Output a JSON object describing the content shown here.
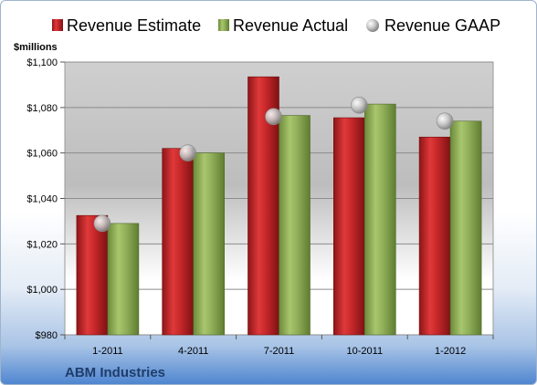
{
  "chart_data": {
    "type": "bar",
    "categories": [
      "1-2011",
      "4-2011",
      "7-2011",
      "10-2011",
      "1-2012"
    ],
    "series": [
      {
        "name": "Revenue Estimate",
        "values": [
          1032.5,
          1062,
          1093.5,
          1075.5,
          1067
        ],
        "color": "#c0282a",
        "mark": "bar"
      },
      {
        "name": "Revenue Actual",
        "values": [
          1029,
          1060,
          1076.5,
          1081.5,
          1074
        ],
        "color": "#8fae58",
        "mark": "bar"
      },
      {
        "name": "Revenue GAAP",
        "values": [
          1029,
          1060,
          1076,
          1081,
          1074
        ],
        "color": "#a9a9a9",
        "mark": "marker"
      }
    ],
    "y_ticks": [
      "$980",
      "$1,000",
      "$1,020",
      "$1,040",
      "$1,060",
      "$1,080",
      "$1,100"
    ],
    "ylabel": "$millions",
    "ylim": [
      980,
      1100
    ],
    "grid": true,
    "legend_placement": "top"
  },
  "footer": {
    "company": "ABM Industries"
  }
}
